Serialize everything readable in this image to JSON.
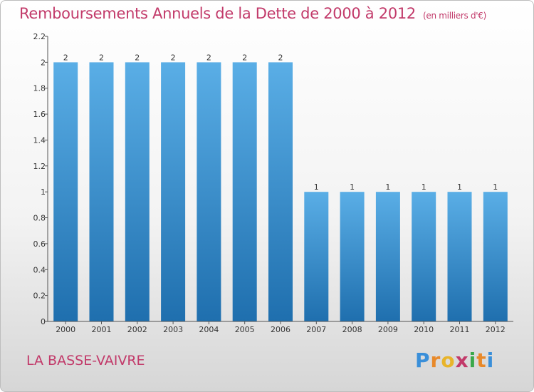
{
  "header": {
    "title": "Remboursements Annuels de la Dette de 2000 à 2012",
    "subtitle": "(en milliers d'€)"
  },
  "footer": {
    "commune": "LA BASSE-VAIVRE",
    "logo_letters": [
      "P",
      "r",
      "o",
      "x",
      "i",
      "t",
      "i"
    ],
    "logo_colors": [
      "#3a8fd9",
      "#e8892a",
      "#e8b42a",
      "#c23a6a",
      "#3aa84a",
      "#e8892a",
      "#3a8fd9"
    ]
  },
  "colors": {
    "title": "#c23a6a",
    "bar_top": "#5aaee6",
    "bar_bottom": "#1f6fae",
    "axis": "#555555",
    "text": "#333333"
  },
  "chart_data": {
    "type": "bar",
    "categories": [
      "2000",
      "2001",
      "2002",
      "2003",
      "2004",
      "2005",
      "2006",
      "2007",
      "2008",
      "2009",
      "2010",
      "2011",
      "2012"
    ],
    "values": [
      2,
      2,
      2,
      2,
      2,
      2,
      2,
      1,
      1,
      1,
      1,
      1,
      1
    ],
    "data_labels": [
      "2",
      "2",
      "2",
      "2",
      "2",
      "2",
      "2",
      "1",
      "1",
      "1",
      "1",
      "1",
      "1"
    ],
    "y_ticks": [
      0,
      0.2,
      0.4,
      0.6,
      0.8,
      1,
      1.2,
      1.4,
      1.6,
      1.8,
      2,
      2.2
    ],
    "y_tick_labels": [
      "0",
      "0.2",
      "0.4",
      "0.6",
      "0.8",
      "1",
      "1.2",
      "1.4",
      "1.6",
      "1.8",
      "2",
      "2.2"
    ],
    "ylim": [
      0,
      2.2
    ],
    "grid": false,
    "title": "Remboursements Annuels de la Dette de 2000 à 2012",
    "xlabel": "",
    "ylabel": ""
  }
}
